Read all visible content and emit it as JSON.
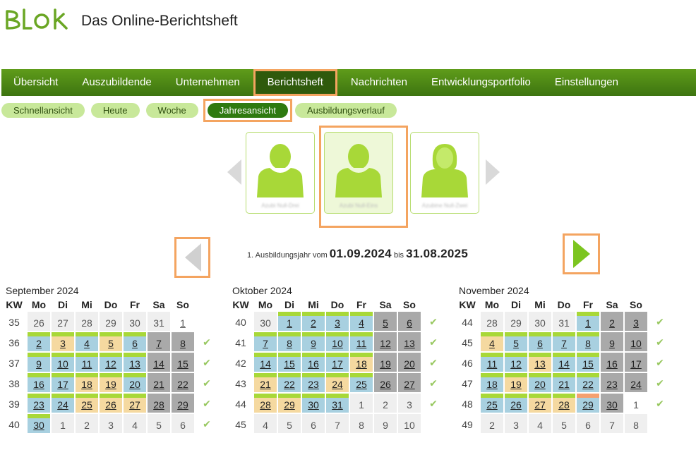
{
  "header": {
    "logo_text": "BLOK",
    "title": "Das Online-Berichtsheft"
  },
  "nav": [
    {
      "label": "Übersicht"
    },
    {
      "label": "Auszubildende"
    },
    {
      "label": "Unternehmen"
    },
    {
      "label": "Berichtsheft",
      "active": true
    },
    {
      "label": "Nachrichten"
    },
    {
      "label": "Entwicklungsportfolio"
    },
    {
      "label": "Einstellungen"
    }
  ],
  "subnav": [
    {
      "label": "Schnellansicht"
    },
    {
      "label": "Heute"
    },
    {
      "label": "Woche"
    },
    {
      "label": "Jahresansicht",
      "active": true
    },
    {
      "label": "Ausbildungsverlauf"
    }
  ],
  "people": [
    {
      "name": "Azubi Null-Drei"
    },
    {
      "name": "Azubi Null-Eins",
      "selected": true
    },
    {
      "name": "Azubine Null-Zwei"
    }
  ],
  "year": {
    "prefix": "1. Ausbildungsjahr vom",
    "from": "01.09.2024",
    "sep": "bis",
    "to": "31.08.2025"
  },
  "weekday_headers": [
    "KW",
    "Mo",
    "Di",
    "Mi",
    "Do",
    "Fr",
    "Sa",
    "So"
  ],
  "colors": {
    "green_bar": "#a8d838",
    "blue": "#a8d0e0",
    "orange": "#f5d9a0",
    "gray": "#a9a9a9",
    "accent": "#f4a460"
  },
  "months": [
    {
      "title": "September 2024",
      "weeks": [
        {
          "kw": "35",
          "check": false,
          "days": [
            [
              "26",
              "plain"
            ],
            [
              "27",
              "plain"
            ],
            [
              "28",
              "plain"
            ],
            [
              "29",
              "plain"
            ],
            [
              "30",
              "plain"
            ],
            [
              "31",
              "plain"
            ],
            [
              "1",
              "white-u"
            ]
          ]
        },
        {
          "kw": "36",
          "check": true,
          "days": [
            [
              "2",
              "blue"
            ],
            [
              "3",
              "orange"
            ],
            [
              "4",
              "blue"
            ],
            [
              "5",
              "orange"
            ],
            [
              "6",
              "blue"
            ],
            [
              "7",
              "dark"
            ],
            [
              "8",
              "dark"
            ]
          ]
        },
        {
          "kw": "37",
          "check": true,
          "days": [
            [
              "9",
              "blue"
            ],
            [
              "10",
              "blue"
            ],
            [
              "11",
              "blue"
            ],
            [
              "12",
              "blue"
            ],
            [
              "13",
              "blue"
            ],
            [
              "14",
              "dark"
            ],
            [
              "15",
              "dark"
            ]
          ]
        },
        {
          "kw": "38",
          "check": true,
          "days": [
            [
              "16",
              "blue"
            ],
            [
              "17",
              "blue"
            ],
            [
              "18",
              "orange"
            ],
            [
              "19",
              "orange"
            ],
            [
              "20",
              "blue"
            ],
            [
              "21",
              "dark"
            ],
            [
              "22",
              "dark"
            ]
          ]
        },
        {
          "kw": "39",
          "check": true,
          "days": [
            [
              "23",
              "blue"
            ],
            [
              "24",
              "blue"
            ],
            [
              "25",
              "orange"
            ],
            [
              "26",
              "orange"
            ],
            [
              "27",
              "orange"
            ],
            [
              "28",
              "dark"
            ],
            [
              "29",
              "dark"
            ]
          ]
        },
        {
          "kw": "40",
          "check": true,
          "days": [
            [
              "30",
              "blue"
            ],
            [
              "1",
              "plain"
            ],
            [
              "2",
              "plain"
            ],
            [
              "3",
              "plain"
            ],
            [
              "4",
              "plain"
            ],
            [
              "5",
              "plain"
            ],
            [
              "6",
              "plain"
            ]
          ]
        }
      ]
    },
    {
      "title": "Oktober 2024",
      "weeks": [
        {
          "kw": "40",
          "check": true,
          "days": [
            [
              "30",
              "plain"
            ],
            [
              "1",
              "blue"
            ],
            [
              "2",
              "blue"
            ],
            [
              "3",
              "blue"
            ],
            [
              "4",
              "blue"
            ],
            [
              "5",
              "dark"
            ],
            [
              "6",
              "dark"
            ]
          ]
        },
        {
          "kw": "41",
          "check": true,
          "days": [
            [
              "7",
              "blue"
            ],
            [
              "8",
              "blue"
            ],
            [
              "9",
              "blue"
            ],
            [
              "10",
              "blue"
            ],
            [
              "11",
              "blue"
            ],
            [
              "12",
              "dark"
            ],
            [
              "13",
              "dark"
            ]
          ]
        },
        {
          "kw": "42",
          "check": true,
          "days": [
            [
              "14",
              "blue"
            ],
            [
              "15",
              "blue"
            ],
            [
              "16",
              "blue"
            ],
            [
              "17",
              "blue"
            ],
            [
              "18",
              "orange"
            ],
            [
              "19",
              "dark"
            ],
            [
              "20",
              "dark"
            ]
          ]
        },
        {
          "kw": "43",
          "check": true,
          "days": [
            [
              "21",
              "orange"
            ],
            [
              "22",
              "blue"
            ],
            [
              "23",
              "blue"
            ],
            [
              "24",
              "orange"
            ],
            [
              "25",
              "blue"
            ],
            [
              "26",
              "dark"
            ],
            [
              "27",
              "dark"
            ]
          ]
        },
        {
          "kw": "44",
          "check": true,
          "days": [
            [
              "28",
              "orange"
            ],
            [
              "29",
              "orange"
            ],
            [
              "30",
              "blue"
            ],
            [
              "31",
              "blue"
            ],
            [
              "1",
              "plain"
            ],
            [
              "2",
              "plain"
            ],
            [
              "3",
              "plain"
            ]
          ]
        },
        {
          "kw": "45",
          "check": false,
          "days": [
            [
              "4",
              "plain"
            ],
            [
              "5",
              "plain"
            ],
            [
              "6",
              "plain"
            ],
            [
              "7",
              "plain"
            ],
            [
              "8",
              "plain"
            ],
            [
              "9",
              "plain"
            ],
            [
              "10",
              "plain"
            ]
          ]
        }
      ]
    },
    {
      "title": "November 2024",
      "weeks": [
        {
          "kw": "44",
          "check": true,
          "days": [
            [
              "28",
              "plain"
            ],
            [
              "29",
              "plain"
            ],
            [
              "30",
              "plain"
            ],
            [
              "31",
              "plain"
            ],
            [
              "1",
              "blue"
            ],
            [
              "2",
              "dark"
            ],
            [
              "3",
              "dark"
            ]
          ]
        },
        {
          "kw": "45",
          "check": true,
          "days": [
            [
              "4",
              "orange"
            ],
            [
              "5",
              "blue"
            ],
            [
              "6",
              "blue"
            ],
            [
              "7",
              "blue"
            ],
            [
              "8",
              "blue"
            ],
            [
              "9",
              "dark"
            ],
            [
              "10",
              "dark"
            ]
          ]
        },
        {
          "kw": "46",
          "check": true,
          "days": [
            [
              "11",
              "blue"
            ],
            [
              "12",
              "blue"
            ],
            [
              "13",
              "orange"
            ],
            [
              "14",
              "blue"
            ],
            [
              "15",
              "blue"
            ],
            [
              "16",
              "dark"
            ],
            [
              "17",
              "dark"
            ]
          ]
        },
        {
          "kw": "47",
          "check": true,
          "days": [
            [
              "18",
              "blue"
            ],
            [
              "19",
              "orange"
            ],
            [
              "20",
              "blue"
            ],
            [
              "21",
              "blue"
            ],
            [
              "22",
              "blue"
            ],
            [
              "23",
              "dark"
            ],
            [
              "24",
              "dark"
            ]
          ]
        },
        {
          "kw": "48",
          "check": true,
          "days": [
            [
              "25",
              "blue"
            ],
            [
              "26",
              "blue"
            ],
            [
              "27",
              "orange"
            ],
            [
              "28",
              "orange"
            ],
            [
              "29",
              "blue-red"
            ],
            [
              "30",
              "dark"
            ],
            [
              "1",
              "white"
            ]
          ]
        },
        {
          "kw": "49",
          "check": false,
          "days": [
            [
              "2",
              "plain"
            ],
            [
              "3",
              "plain"
            ],
            [
              "4",
              "plain"
            ],
            [
              "5",
              "plain"
            ],
            [
              "6",
              "plain"
            ],
            [
              "7",
              "plain"
            ],
            [
              "8",
              "plain"
            ]
          ]
        }
      ]
    }
  ]
}
